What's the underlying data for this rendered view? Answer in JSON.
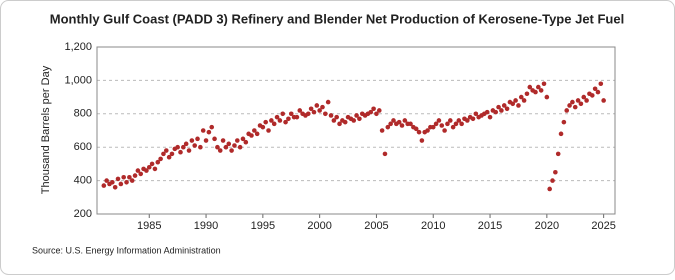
{
  "chart_data": {
    "type": "scatter",
    "title": "Monthly Gulf Coast (PADD 3) Refinery and Blender Net Production of Kerosene-Type Jet Fuel",
    "y_label": "Thousand Barrels per Day",
    "source": "Source: U.S. Energy Information Administration",
    "xlim": [
      1980.4,
      2026
    ],
    "xticks": [
      1985,
      1990,
      1995,
      2000,
      2005,
      2010,
      2015,
      2020,
      2025
    ],
    "ylim": [
      200,
      1200
    ],
    "yticks": [
      200,
      400,
      600,
      800,
      {
        "value": 1000,
        "label": "1,000"
      },
      {
        "value": 1200,
        "label": "1,200"
      }
    ],
    "grid": true,
    "series": [
      {
        "name": "Kerosene-Type Jet Fuel",
        "color": "#b02a2a",
        "x": [
          1981,
          1981.25,
          1981.5,
          1981.75,
          1982,
          1982.25,
          1982.5,
          1982.75,
          1983,
          1983.25,
          1983.5,
          1983.75,
          1984,
          1984.25,
          1984.5,
          1984.75,
          1985,
          1985.25,
          1985.5,
          1985.75,
          1986,
          1986.25,
          1986.5,
          1986.75,
          1987,
          1987.25,
          1987.5,
          1987.75,
          1988,
          1988.25,
          1988.5,
          1988.75,
          1989,
          1989.25,
          1989.5,
          1989.75,
          1990,
          1990.25,
          1990.5,
          1990.75,
          1991,
          1991.25,
          1991.5,
          1991.75,
          1992,
          1992.25,
          1992.5,
          1992.75,
          1993,
          1993.25,
          1993.5,
          1993.75,
          1994,
          1994.25,
          1994.5,
          1994.75,
          1995,
          1995.25,
          1995.5,
          1995.75,
          1996,
          1996.25,
          1996.5,
          1996.75,
          1997,
          1997.25,
          1997.5,
          1997.75,
          1998,
          1998.25,
          1998.5,
          1998.75,
          1999,
          1999.25,
          1999.5,
          1999.75,
          2000,
          2000.25,
          2000.5,
          2000.75,
          2001,
          2001.25,
          2001.5,
          2001.75,
          2002,
          2002.25,
          2002.5,
          2002.75,
          2003,
          2003.25,
          2003.5,
          2003.75,
          2004,
          2004.25,
          2004.5,
          2004.75,
          2005,
          2005.25,
          2005.5,
          2005.75,
          2006,
          2006.25,
          2006.5,
          2006.75,
          2007,
          2007.25,
          2007.5,
          2007.75,
          2008,
          2008.25,
          2008.5,
          2008.75,
          2009,
          2009.25,
          2009.5,
          2009.75,
          2010,
          2010.25,
          2010.5,
          2010.75,
          2011,
          2011.25,
          2011.5,
          2011.75,
          2012,
          2012.25,
          2012.5,
          2012.75,
          2013,
          2013.25,
          2013.5,
          2013.75,
          2014,
          2014.25,
          2014.5,
          2014.75,
          2015,
          2015.25,
          2015.5,
          2015.75,
          2016,
          2016.25,
          2016.5,
          2016.75,
          2017,
          2017.25,
          2017.5,
          2017.75,
          2018,
          2018.25,
          2018.5,
          2018.75,
          2019,
          2019.25,
          2019.5,
          2019.75,
          2020,
          2020.25,
          2020.5,
          2020.75,
          2021,
          2021.25,
          2021.5,
          2021.75,
          2022,
          2022.25,
          2022.5,
          2022.75,
          2023,
          2023.25,
          2023.5,
          2023.75,
          2024,
          2024.25,
          2024.5,
          2024.75,
          2025
        ],
        "values": [
          370,
          400,
          380,
          390,
          360,
          410,
          380,
          420,
          390,
          420,
          400,
          430,
          460,
          440,
          470,
          460,
          480,
          500,
          470,
          510,
          530,
          560,
          580,
          540,
          560,
          590,
          600,
          570,
          600,
          620,
          580,
          640,
          610,
          650,
          600,
          700,
          640,
          690,
          720,
          650,
          600,
          580,
          640,
          600,
          620,
          580,
          610,
          640,
          600,
          650,
          630,
          680,
          670,
          700,
          680,
          730,
          720,
          750,
          700,
          760,
          740,
          780,
          760,
          800,
          750,
          770,
          800,
          780,
          780,
          820,
          800,
          790,
          800,
          830,
          810,
          850,
          820,
          840,
          800,
          870,
          790,
          760,
          780,
          740,
          760,
          750,
          780,
          770,
          760,
          790,
          770,
          800,
          790,
          800,
          810,
          830,
          800,
          820,
          700,
          560,
          720,
          740,
          760,
          740,
          750,
          730,
          760,
          740,
          740,
          720,
          710,
          690,
          640,
          690,
          700,
          720,
          720,
          740,
          760,
          730,
          700,
          740,
          760,
          720,
          740,
          760,
          740,
          770,
          760,
          780,
          770,
          800,
          780,
          790,
          800,
          810,
          780,
          820,
          810,
          840,
          820,
          850,
          830,
          870,
          860,
          880,
          850,
          900,
          880,
          920,
          960,
          940,
          930,
          960,
          940,
          980,
          900,
          350,
          400,
          450,
          560,
          680,
          750,
          820,
          850,
          870,
          840,
          880,
          860,
          900,
          880,
          920,
          910,
          950,
          930,
          980,
          880
        ]
      }
    ]
  }
}
